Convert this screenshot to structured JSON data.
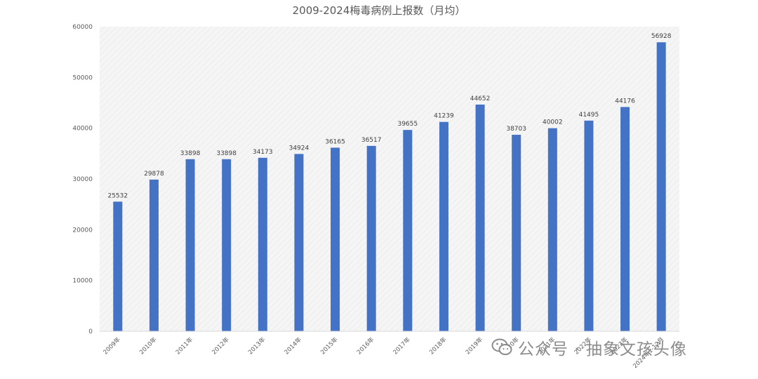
{
  "chart_data": {
    "type": "bar",
    "title": "2009-2024梅毒病例上报数（月均）",
    "categories": [
      "2009年",
      "2010年",
      "2011年",
      "2012年",
      "2013年",
      "2014年",
      "2015年",
      "2016年",
      "2017年",
      "2018年",
      "2019年",
      "2020年",
      "2021年",
      "2022年",
      "2023年",
      "2024年1-12月"
    ],
    "values": [
      25532,
      29878,
      33898,
      33898,
      34173,
      34924,
      36165,
      36517,
      39655,
      41239,
      44652,
      38703,
      40002,
      41495,
      44176,
      56928
    ],
    "yticks": [
      0,
      10000,
      20000,
      30000,
      40000,
      50000,
      60000
    ],
    "ylim": [
      0,
      60000
    ],
    "xlabel": "",
    "ylabel": "",
    "bar_color": "#4472C4",
    "grid": false,
    "legend": false
  },
  "watermark": {
    "text": "公众号 · 抽象文孩头像",
    "icon": "wechat-icon"
  }
}
